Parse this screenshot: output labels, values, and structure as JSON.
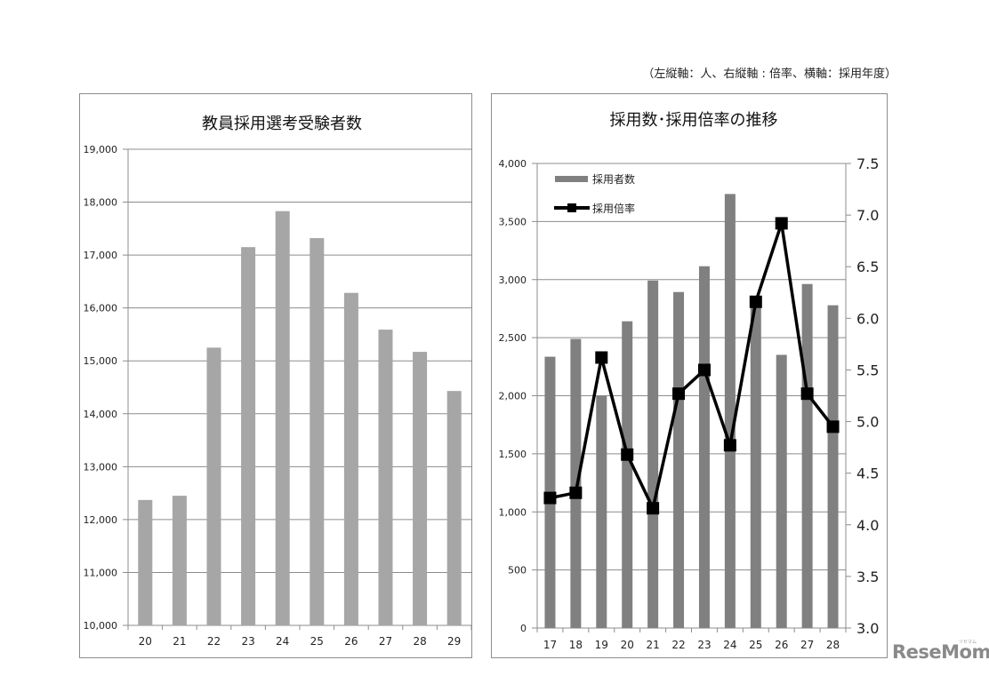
{
  "header": {
    "axis_note": "（左縦軸：人、右縦軸 : 倍率、横軸：採用年度）"
  },
  "logo": {
    "text": "ReseMom",
    "kana": "リセマム"
  },
  "colors": {
    "left_bar": "#a6a6a6",
    "right_bar": "#808080",
    "line": "#000000",
    "grid": "#8c8c8c",
    "axis_text": "#222222"
  },
  "chart_data": [
    {
      "type": "bar",
      "title": "教員採用選考受験者数",
      "categories": [
        "20",
        "21",
        "22",
        "23",
        "24",
        "25",
        "26",
        "27",
        "28",
        "29"
      ],
      "values": [
        12370,
        12450,
        15250,
        17150,
        17830,
        17320,
        16285,
        15590,
        15170,
        14430
      ],
      "xlabel": "",
      "ylabel": "",
      "ylim": [
        10000,
        19000
      ],
      "yticks": [
        10000,
        11000,
        12000,
        13000,
        14000,
        15000,
        16000,
        17000,
        18000,
        19000
      ],
      "ytick_labels": [
        "10,000",
        "11,000",
        "12,000",
        "13,000",
        "14,000",
        "15,000",
        "16,000",
        "17,000",
        "18,000",
        "19,000"
      ],
      "grid": true,
      "legend": null
    },
    {
      "type": "bar+line",
      "title": "採用数･採用倍率の推移",
      "categories": [
        "17",
        "18",
        "19",
        "20",
        "21",
        "22",
        "23",
        "24",
        "25",
        "26",
        "27",
        "28"
      ],
      "series": [
        {
          "name": "採用者数",
          "type": "bar",
          "axis": "left",
          "values": [
            2336,
            2489,
            2000,
            2641,
            2992,
            2893,
            3115,
            3737,
            2800,
            2352,
            2962,
            2779
          ]
        },
        {
          "name": "採用倍率",
          "type": "line",
          "axis": "right",
          "marker": "square",
          "values": [
            4.26,
            4.31,
            5.62,
            4.68,
            4.16,
            5.27,
            5.5,
            4.77,
            6.16,
            6.92,
            5.27,
            4.95
          ]
        }
      ],
      "ylim_left": [
        0,
        4000
      ],
      "yticks_left": [
        0,
        500,
        1000,
        1500,
        2000,
        2500,
        3000,
        3500,
        4000
      ],
      "ytick_labels_left": [
        "0",
        "500",
        "1,000",
        "1,500",
        "2,000",
        "2,500",
        "3,000",
        "3,500",
        "4,000"
      ],
      "ylim_right": [
        3.0,
        7.5
      ],
      "yticks_right": [
        3.0,
        3.5,
        4.0,
        4.5,
        5.0,
        5.5,
        6.0,
        6.5,
        7.0,
        7.5
      ],
      "ytick_labels_right": [
        "3.0",
        "3.5",
        "4.0",
        "4.5",
        "5.0",
        "5.5",
        "6.0",
        "6.5",
        "7.0",
        "7.5"
      ],
      "grid": true,
      "legend_position": "upper-left inside"
    }
  ]
}
